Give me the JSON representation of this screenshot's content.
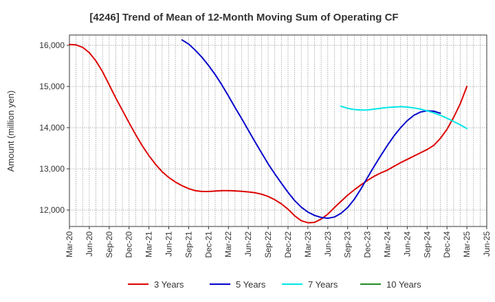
{
  "chart_data": {
    "type": "line",
    "title": "[4246]  Trend of Mean of 12-Month Moving Sum of Operating CF",
    "xlabel": "",
    "ylabel": "Amount (million yen)",
    "ylim": [
      11600,
      16250
    ],
    "yticks": [
      12000,
      13000,
      14000,
      15000,
      16000
    ],
    "ytick_labels": [
      "12,000",
      "13,000",
      "14,000",
      "15,000",
      "16,000"
    ],
    "x_start": "2020-03",
    "x_end": "2025-06",
    "xtick_labels": [
      "Mar-20",
      "Jun-20",
      "Sep-20",
      "Dec-20",
      "Mar-21",
      "Jun-21",
      "Sep-21",
      "Dec-21",
      "Mar-22",
      "Jun-22",
      "Sep-22",
      "Dec-22",
      "Mar-23",
      "Jun-23",
      "Sep-23",
      "Dec-23",
      "Mar-24",
      "Jun-24",
      "Sep-24",
      "Dec-24",
      "Mar-25",
      "Jun-25"
    ],
    "grid": true,
    "legend_position": "bottom",
    "series": [
      {
        "name": "3 Years",
        "color": "#dd0000",
        "start": "2020-03",
        "values": [
          16020,
          16010,
          15950,
          15820,
          15620,
          15360,
          15040,
          14720,
          14420,
          14120,
          13830,
          13560,
          13320,
          13110,
          12930,
          12790,
          12680,
          12590,
          12520,
          12470,
          12450,
          12450,
          12460,
          12470,
          12470,
          12465,
          12455,
          12440,
          12420,
          12385,
          12330,
          12250,
          12150,
          12020,
          11860,
          11740,
          11690,
          11700,
          11780,
          11900,
          12060,
          12210,
          12360,
          12490,
          12610,
          12720,
          12820,
          12900,
          12970,
          13060,
          13150,
          13230,
          13310,
          13390,
          13470,
          13570,
          13740,
          13960,
          14250,
          14580,
          15000
        ]
      },
      {
        "name": "5 Years",
        "color": "#0000cc",
        "start": "2021-08",
        "values": [
          16130,
          16030,
          15880,
          15710,
          15510,
          15290,
          15040,
          14770,
          14490,
          14220,
          13940,
          13660,
          13390,
          13120,
          12880,
          12650,
          12430,
          12230,
          12070,
          11950,
          11870,
          11820,
          11800,
          11830,
          11920,
          12060,
          12260,
          12510,
          12790,
          13060,
          13320,
          13570,
          13800,
          14000,
          14170,
          14300,
          14380,
          14410,
          14400,
          14350
        ]
      },
      {
        "name": "7 Years",
        "color": "#00e5e5",
        "start": "2023-08",
        "values": [
          14520,
          14470,
          14440,
          14430,
          14430,
          14450,
          14470,
          14490,
          14500,
          14510,
          14500,
          14480,
          14450,
          14410,
          14360,
          14300,
          14230,
          14150,
          14070,
          13980
        ]
      },
      {
        "name": "10 Years",
        "color": "#228b22",
        "start": "2025-03",
        "values": []
      }
    ]
  }
}
